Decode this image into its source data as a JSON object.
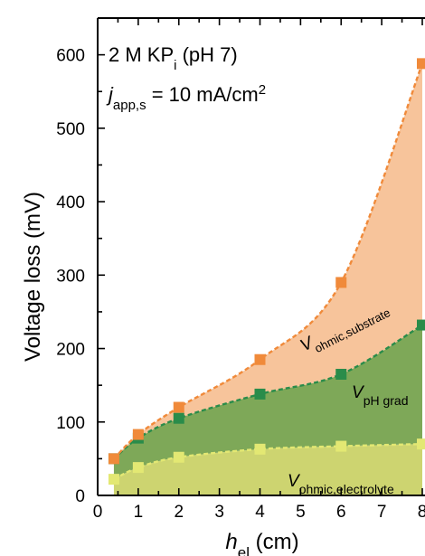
{
  "chart_data": {
    "type": "area",
    "x_unit_values": [
      0.4,
      1,
      2,
      4,
      6,
      8
    ],
    "xlim": [
      0,
      8
    ],
    "ylim": [
      0,
      650
    ],
    "x_ticks": [
      "0",
      "1",
      "2",
      "3",
      "4",
      "5",
      "6",
      "7",
      "8"
    ],
    "y_ticks": [
      "0",
      "100",
      "200",
      "300",
      "400",
      "500",
      "600"
    ],
    "xlabel": {
      "main": "h",
      "sub": "el",
      "unit": " (cm)"
    },
    "ylabel": "Voltage loss (mV)",
    "annotations": {
      "line1": {
        "text": "2 M KP",
        "sub": "i",
        "rest": " (pH 7)"
      },
      "line2": {
        "main": "j",
        "sub": "app,s",
        "rest": " = 10 mA/cm",
        "sup": "2"
      }
    },
    "series": [
      {
        "key": "electrolyte",
        "label_main": "V",
        "label_sub": "ohmic,electrolyte",
        "x": [
          0.4,
          1,
          2,
          4,
          6,
          8
        ],
        "values": [
          22,
          38,
          52,
          63,
          67,
          70
        ],
        "color": "#e3e873",
        "fill": "#cdd470"
      },
      {
        "key": "ph_grad",
        "label_main": "V",
        "label_sub": "pH grad",
        "x": [
          0.4,
          1,
          2,
          4,
          6,
          8
        ],
        "values": [
          50,
          78,
          105,
          138,
          165,
          232
        ],
        "color": "#2a8c4a",
        "fill": "#7ea858"
      },
      {
        "key": "substrate",
        "label_main": "V",
        "label_sub": "ohmic,substrate",
        "x": [
          0.4,
          1,
          2,
          4,
          6,
          8
        ],
        "values": [
          50,
          83,
          120,
          185,
          290,
          588
        ],
        "color": "#f08a3a",
        "fill": "#f7c49b"
      }
    ],
    "legend": "none",
    "grid": false
  }
}
